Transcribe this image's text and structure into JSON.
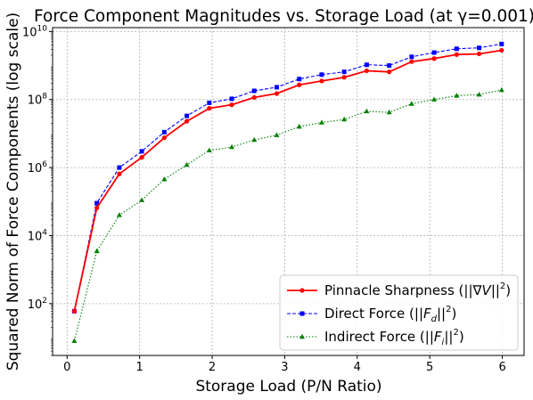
{
  "chart_data": {
    "type": "line",
    "title": "Force Component Magnitudes vs. Storage Load (at γ=0.001)",
    "xlabel": "Storage Load (P/N Ratio)",
    "ylabel": "Squared Norm of Force Components (log scale)",
    "yscale": "log",
    "xlim": [
      -0.2,
      6.3
    ],
    "ylim": [
      3,
      13000000000.0
    ],
    "grid": true,
    "legend_position": "bottom-right",
    "x_ticks": [
      0,
      1,
      2,
      3,
      4,
      5,
      6
    ],
    "y_ticks": [
      {
        "value": 100,
        "base": "10",
        "exp": "2"
      },
      {
        "value": 10000,
        "base": "10",
        "exp": "4"
      },
      {
        "value": 1000000,
        "base": "10",
        "exp": "6"
      },
      {
        "value": 100000000,
        "base": "10",
        "exp": "8"
      },
      {
        "value": 10000000000,
        "base": "10",
        "exp": "10"
      }
    ],
    "x": [
      0.1,
      0.41,
      0.72,
      1.03,
      1.34,
      1.65,
      1.96,
      2.27,
      2.58,
      2.89,
      3.2,
      3.51,
      3.82,
      4.13,
      4.44,
      4.75,
      5.06,
      5.37,
      5.68,
      5.99
    ],
    "series": [
      {
        "name": "Pinnacle Sharpness",
        "legend_prefix": "Pinnacle Sharpness (||∇",
        "legend_italic": "V",
        "legend_suffix": "||",
        "legend_sup": "2",
        "legend_close": ")",
        "color": "#ff0000",
        "linestyle": "solid",
        "marker": "circle",
        "values": [
          60,
          65000.0,
          650000.0,
          2000000.0,
          7500000.0,
          23000000.0,
          55000000.0,
          70000000.0,
          115000000.0,
          150000000.0,
          270000000.0,
          350000000.0,
          450000000.0,
          700000000.0,
          650000000.0,
          1300000000.0,
          1600000000.0,
          2100000000.0,
          2200000000.0,
          2800000000.0
        ]
      },
      {
        "name": "Direct Force",
        "legend_prefix": "Direct Force (||",
        "legend_italic": "F",
        "legend_sub": "d",
        "legend_suffix": "||",
        "legend_sup": "2",
        "legend_close": ")",
        "color": "#0000ff",
        "linestyle": "dashed",
        "marker": "square",
        "values": [
          60,
          90000.0,
          1000000.0,
          3000000.0,
          11000000.0,
          33000000.0,
          80000000.0,
          105000000.0,
          180000000.0,
          230000000.0,
          400000000.0,
          540000000.0,
          650000000.0,
          1050000000.0,
          1000000000.0,
          1800000000.0,
          2400000000.0,
          3100000000.0,
          3300000000.0,
          4300000000.0
        ]
      },
      {
        "name": "Indirect Force",
        "legend_prefix": "Indirect Force (||",
        "legend_italic": "F",
        "legend_sub": "i",
        "legend_suffix": "||",
        "legend_sup": "2",
        "legend_close": ")",
        "color": "#008000",
        "linestyle": "dotted",
        "marker": "triangle",
        "values": [
          8,
          3500,
          40000.0,
          110000.0,
          450000.0,
          1200000.0,
          3200000.0,
          4000000.0,
          6500000.0,
          9000000.0,
          16000000.0,
          21000000.0,
          26000000.0,
          45000000.0,
          42000000.0,
          75000000.0,
          100000000.0,
          130000000.0,
          140000000.0,
          190000000.0
        ]
      }
    ]
  }
}
